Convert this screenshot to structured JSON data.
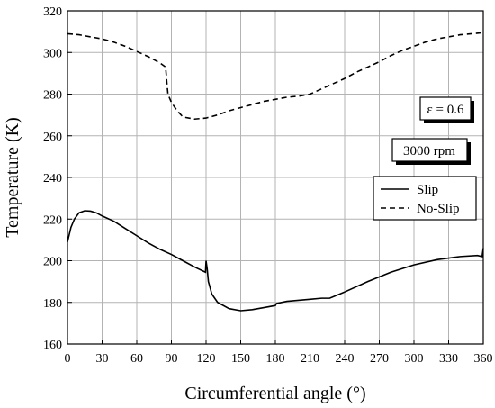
{
  "chart_data": {
    "type": "line",
    "title": "",
    "xlabel": "Circumferential angle (°)",
    "ylabel": "Temperature (K)",
    "xlim": [
      0,
      360
    ],
    "ylim": [
      160,
      320
    ],
    "xticks": [
      "0",
      "30",
      "60",
      "90",
      "120",
      "150",
      "180",
      "210",
      "240",
      "270",
      "300",
      "330",
      "360"
    ],
    "yticks": [
      "160",
      "180",
      "200",
      "220",
      "240",
      "260",
      "280",
      "300",
      "320"
    ],
    "grid": true,
    "legend_position": "right",
    "annotations": [
      "ε = 0.6",
      "3000 rpm"
    ],
    "series": [
      {
        "name": "Slip",
        "style": "solid",
        "x": [
          0,
          3,
          6,
          10,
          15,
          20,
          25,
          30,
          40,
          50,
          60,
          70,
          80,
          90,
          100,
          110,
          119.5,
          120,
          121,
          122,
          125,
          130,
          140,
          150,
          160,
          170,
          180,
          181,
          190,
          200,
          210,
          220,
          227,
          240,
          260,
          280,
          300,
          320,
          340,
          355,
          359,
          360
        ],
        "y": [
          209,
          216,
          220,
          223,
          224,
          223.8,
          223,
          221.5,
          219,
          215.5,
          212,
          208.5,
          205.5,
          203,
          200,
          197,
          194.5,
          200,
          196,
          190,
          184,
          180,
          177,
          176,
          176.5,
          177.5,
          178.5,
          179.5,
          180.5,
          181,
          181.5,
          182,
          182,
          185,
          190,
          194.5,
          198,
          200.5,
          202,
          202.5,
          202,
          206
        ]
      },
      {
        "name": "No-Slip",
        "style": "dashed",
        "x": [
          0,
          10,
          20,
          30,
          40,
          50,
          60,
          70,
          80,
          85,
          86,
          87,
          90,
          95,
          100,
          110,
          120,
          130,
          140,
          150,
          160,
          170,
          180,
          190,
          200,
          210,
          220,
          230,
          240,
          250,
          260,
          270,
          280,
          290,
          300,
          310,
          320,
          330,
          340,
          350,
          360
        ],
        "y": [
          309,
          308.5,
          307.5,
          306.5,
          305,
          303,
          300.5,
          298,
          295,
          293,
          286,
          280,
          276,
          272,
          269,
          268,
          268.5,
          270,
          272,
          273.5,
          275,
          276.5,
          277.5,
          278.5,
          279,
          280,
          282.5,
          285,
          287.5,
          290.5,
          293,
          295.5,
          298.5,
          301,
          303,
          305,
          306.5,
          307.5,
          308.5,
          309,
          309.5
        ]
      }
    ]
  }
}
